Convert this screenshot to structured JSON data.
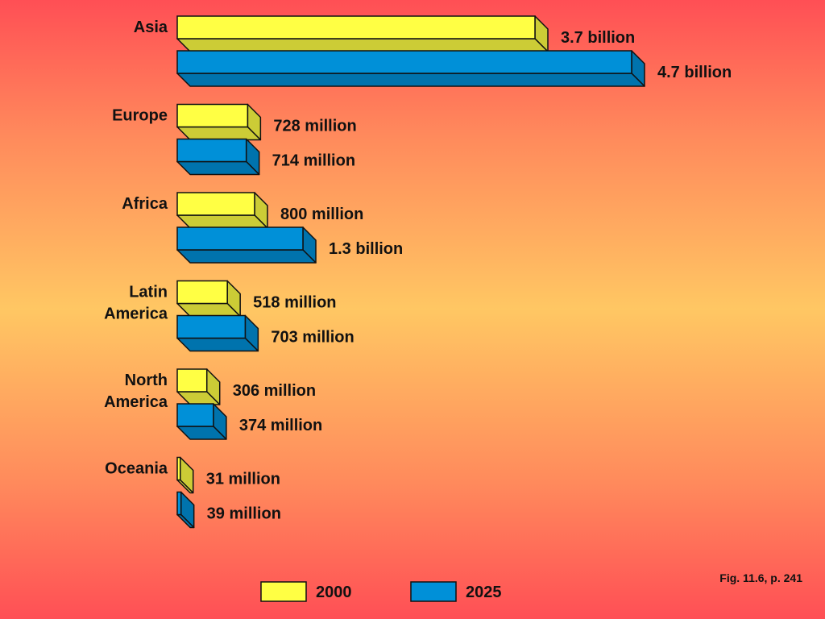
{
  "chart_data": {
    "type": "bar",
    "orientation": "horizontal",
    "style": "3d",
    "categories": [
      [
        "Asia"
      ],
      [
        "Europe"
      ],
      [
        "Africa"
      ],
      [
        "Latin",
        "America"
      ],
      [
        "North",
        "America"
      ],
      [
        "Oceania"
      ]
    ],
    "series": [
      {
        "name": "2000",
        "color": "#ffff44",
        "values": [
          3700,
          728,
          800,
          518,
          306,
          31
        ],
        "labels": [
          "3.7 billion",
          "728 million",
          "800 million",
          "518 million",
          "306 million",
          "31 million"
        ]
      },
      {
        "name": "2025",
        "color": "#0090d8",
        "values": [
          4700,
          714,
          1300,
          703,
          374,
          39
        ],
        "labels": [
          "4.7 billion",
          "714 million",
          "1.3 billion",
          "703 million",
          "374 million",
          "39 million"
        ]
      }
    ],
    "unit": "million",
    "legend": "bottom-center"
  },
  "caption": "Fig. 11.6, p. 241"
}
